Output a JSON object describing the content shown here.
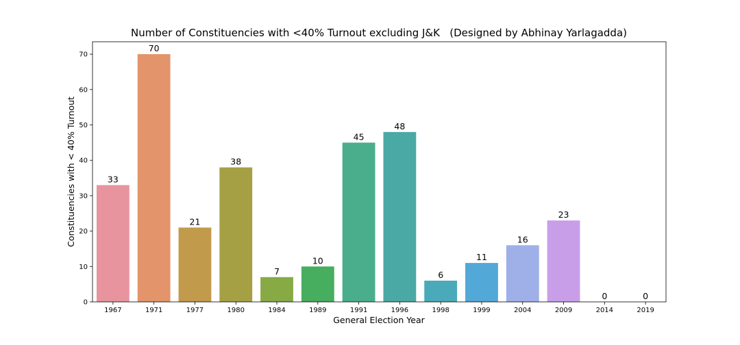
{
  "chart_data": {
    "type": "bar",
    "title": "Number of Constituencies with <40% Turnout excluding J&K   (Designed by Abhinay Yarlagadda)",
    "xlabel": "General Election Year",
    "ylabel": "Constituencies with < 40% Turnout",
    "categories": [
      "1967",
      "1971",
      "1977",
      "1980",
      "1984",
      "1989",
      "1991",
      "1996",
      "1998",
      "1999",
      "2004",
      "2009",
      "2014",
      "2019"
    ],
    "values": [
      33,
      70,
      21,
      38,
      7,
      10,
      45,
      48,
      6,
      11,
      16,
      23,
      0,
      0
    ],
    "data_labels": [
      "33",
      "70",
      "21",
      "38",
      "7",
      "10",
      "45",
      "48",
      "6",
      "11",
      "16",
      "23",
      "0",
      "0"
    ],
    "colors": [
      "#e8949f",
      "#e3946a",
      "#c29a4b",
      "#a5a043",
      "#87aa45",
      "#47ad5f",
      "#4aad8c",
      "#4aa9a4",
      "#4aaab9",
      "#52a8d7",
      "#9fb0e9",
      "#c89ee9",
      "#e39bd6",
      "#e896be"
    ],
    "yticks": [
      0,
      10,
      20,
      30,
      40,
      50,
      60,
      70
    ],
    "ylim": [
      0,
      73.5
    ],
    "grid": false,
    "legend": "none"
  }
}
